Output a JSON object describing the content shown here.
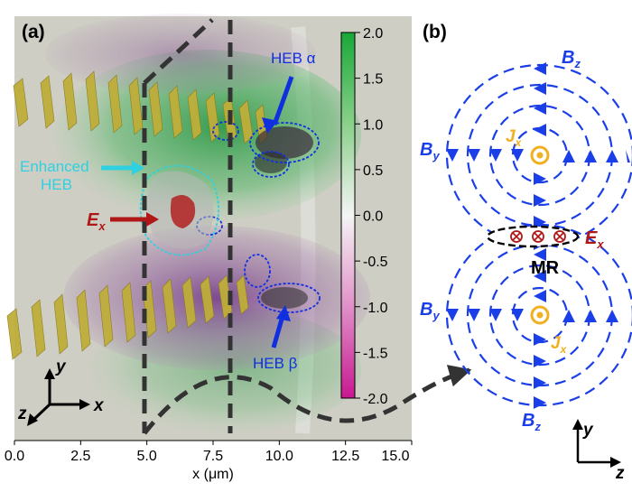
{
  "panel_a": {
    "label": "(a)",
    "annotations": {
      "heb_alpha": "HEB α",
      "heb_beta": "HEB β",
      "enhanced_line1": "Enhanced",
      "enhanced_line2": "HEB",
      "ex": "E",
      "ex_sub": "x"
    },
    "axes": {
      "xlabel_prefix": "x (",
      "xlabel_unit": "μm",
      "xlabel_suffix": ")",
      "xlim": [
        0,
        15
      ],
      "xticks": [
        0.0,
        2.5,
        5.0,
        7.5,
        10.0,
        12.5,
        15.0
      ],
      "tick_labels": [
        "0.0",
        "2.5",
        "5.0",
        "7.5",
        "10.0",
        "12.5",
        "15.0"
      ]
    },
    "colorbar": {
      "range": [
        -2.0,
        2.0
      ],
      "ticks": [
        "2.0",
        "1.5",
        "1.0",
        "0.5",
        "0.0",
        "-0.5",
        "-1.0",
        "-1.5",
        "-2.0"
      ]
    },
    "triad": {
      "y": "y",
      "x": "x",
      "z": "z"
    },
    "colors": {
      "green": "#2e9a48",
      "purple": "#6a2a82",
      "yellow": "#bfae3a",
      "cyan": "#2fd0e0",
      "blue": "#1030e0",
      "red": "#b01818"
    }
  },
  "panel_b": {
    "label": "(b)",
    "bz_top": "B",
    "bz_bottom": "B",
    "bz_sub": "z",
    "by_top": "B",
    "by_bottom": "B",
    "by_sub": "y",
    "jx_top": "J",
    "jx_bottom": "J",
    "jx_sub": "x",
    "ex": "E",
    "ex_sub": "x",
    "mr": "MR",
    "triad": {
      "y": "y",
      "z": "z"
    },
    "colors": {
      "field": "#1a3ee8",
      "current": "#f0b020",
      "ex": "#b01818"
    }
  }
}
